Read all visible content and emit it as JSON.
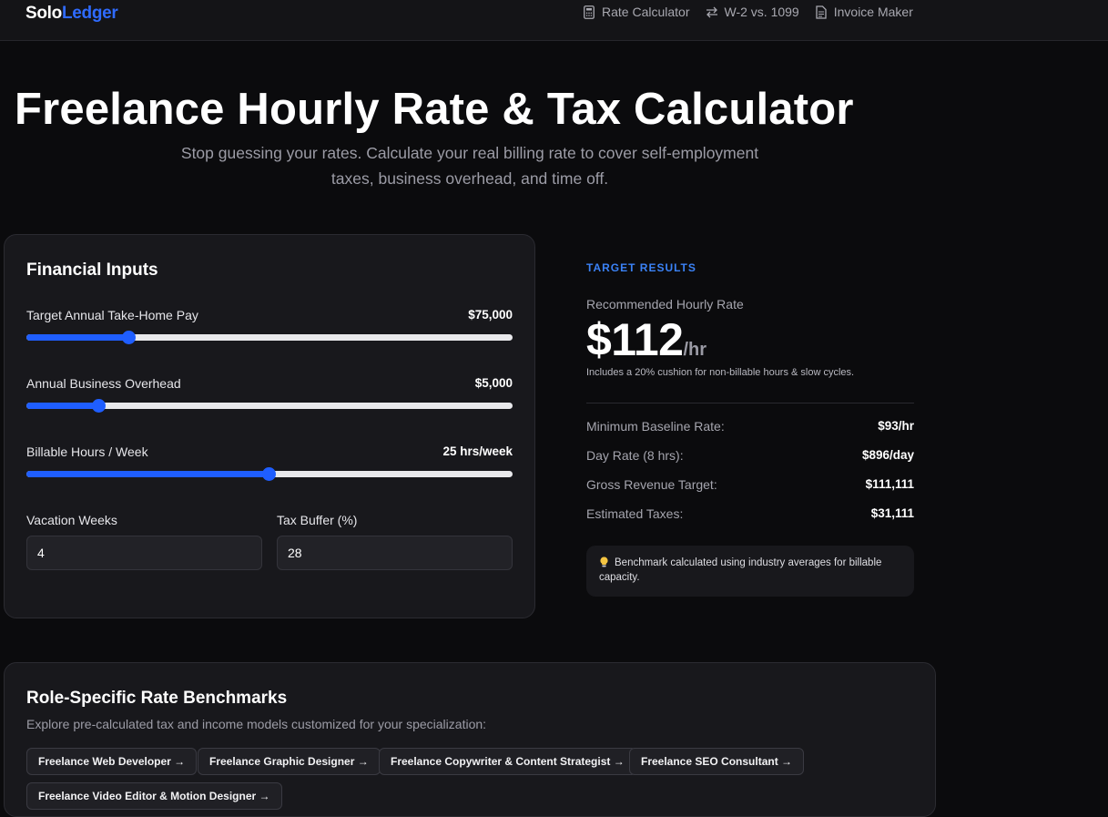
{
  "header": {
    "brand_part1": "Solo",
    "brand_part2": "Ledger",
    "brand_accent": "#2f6bff",
    "nav": [
      {
        "label": "Rate Calculator",
        "icon": "calculator-icon"
      },
      {
        "label": "W-2 vs. 1099",
        "icon": "swap-arrows-icon"
      },
      {
        "label": "Invoice Maker",
        "icon": "document-icon"
      }
    ]
  },
  "hero": {
    "title": "Freelance Hourly Rate & Tax Calculator",
    "subtitle_line1": "Stop guessing your rates. Calculate your real billing rate to cover self-employment",
    "subtitle_line2": "taxes, business overhead, and time off."
  },
  "inputs": {
    "title": "Financial Inputs",
    "sliders": [
      {
        "label": "Target Annual Take-Home Pay",
        "value_text": "$75,000",
        "fraction": 0.21
      },
      {
        "label": "Annual Business Overhead",
        "value_text": "$5,000",
        "fraction": 0.148
      },
      {
        "label": "Billable Hours / Week",
        "value_text": "25 hrs/week",
        "fraction": 0.499
      }
    ],
    "vacation_label": "Vacation Weeks",
    "vacation_value": "4",
    "tax_label": "Tax Buffer (%)",
    "tax_value": "28",
    "accent": "#1f5eff"
  },
  "results": {
    "eyebrow": "TARGET RESULTS",
    "rec_label": "Recommended Hourly Rate",
    "rec_amount": "$112",
    "rec_unit": "/hr",
    "note": "Includes a 20% cushion for non-billable hours & slow cycles.",
    "rows": [
      {
        "label": "Minimum Baseline Rate:",
        "value": "$93/hr"
      },
      {
        "label": "Day Rate (8 hrs):",
        "value": "$896/day"
      },
      {
        "label": "Gross Revenue Target:",
        "value": "$111,111"
      },
      {
        "label": "Estimated Taxes:",
        "value": "$31,111"
      }
    ],
    "tip": "Benchmark calculated using industry averages for billable capacity.",
    "eyebrow_color": "#3b82f6"
  },
  "benchmarks": {
    "title": "Role-Specific Rate Benchmarks",
    "subtitle": "Explore pre-calculated tax and income models customized for your specialization:",
    "chips": [
      "Freelance Web Developer →",
      "Freelance Graphic Designer →",
      "Freelance Copywriter & Content Strategist →",
      "Freelance SEO Consultant →",
      "Freelance Video Editor & Motion Designer →"
    ]
  }
}
